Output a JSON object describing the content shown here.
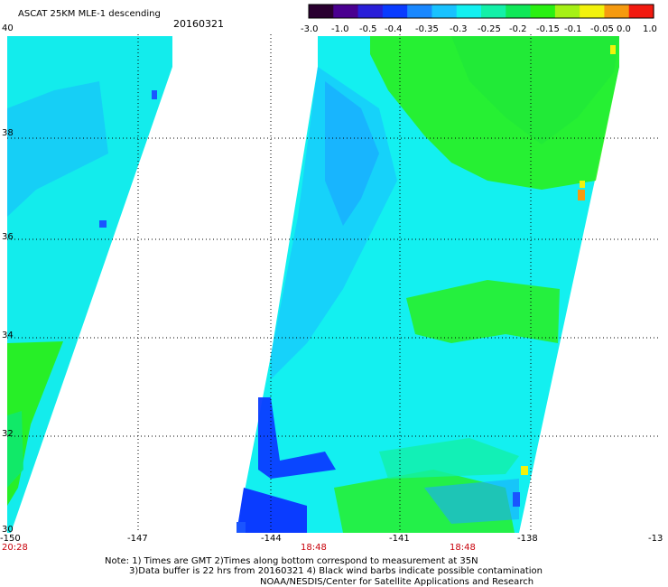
{
  "header": {
    "title": "ASCAT 25KM MLE-1 descending",
    "date": "20160321"
  },
  "colorbar": {
    "ticks": [
      "-3.0",
      "-1.0",
      "-0.5",
      "-0.4",
      "-0.35",
      "-0.3",
      "-0.25",
      "-0.2",
      "-0.15",
      "-0.1",
      "-0.05",
      "0.0",
      "1.0"
    ],
    "stops": [
      "#2a0030",
      "#4a0090",
      "#2a1fd8",
      "#0a3cff",
      "#1a88ff",
      "#19c2ff",
      "#13f0f0",
      "#13f0a8",
      "#10e858",
      "#2af012",
      "#a6f015",
      "#f2f20c",
      "#f59a10",
      "#f21a10"
    ]
  },
  "axes": {
    "lat_labels": [
      "40",
      "38",
      "36",
      "34",
      "32",
      "30"
    ],
    "lon_labels": [
      "-150",
      "-147",
      "-144",
      "-141",
      "-138",
      "-13"
    ],
    "time_labels": [
      "20:28",
      "18:48",
      "18:48"
    ]
  },
  "notes": {
    "line1": "Note: 1) Times are GMT 2)Times along bottom correspond to measurement at 35N",
    "line2": "3)Data buffer is 22 hrs from 20160321 4) Black wind barbs indicate possible contamination",
    "line3": "NOAA/NESDIS/Center for Satellite Applications and Research"
  },
  "palette": {
    "blue": "#0a3cff",
    "light_blue": "#1aa8ff",
    "cyan": "#13f0f0",
    "green": "#2af012",
    "yellow": "#f2f20c",
    "orange": "#f59a10"
  }
}
